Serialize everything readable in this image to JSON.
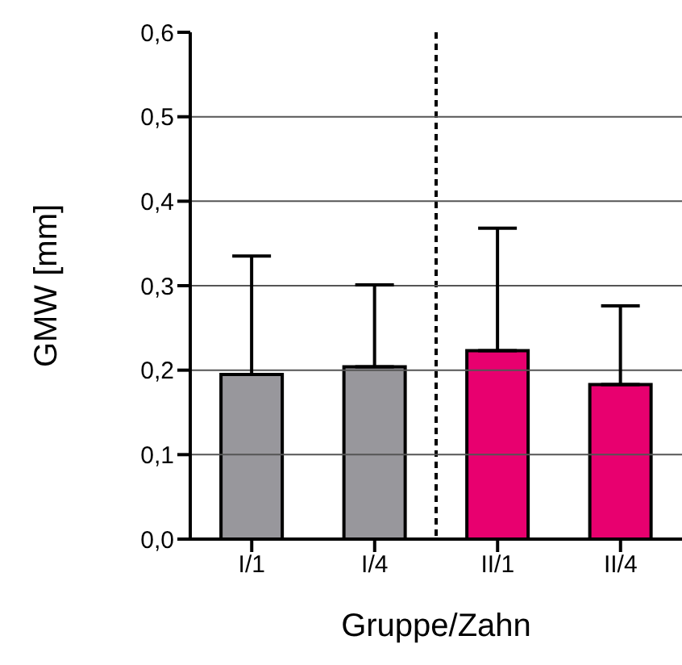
{
  "chart_data": {
    "type": "bar",
    "xlabel": "Gruppe/Zahn",
    "ylabel": "GMW [mm]",
    "categories": [
      "I/1",
      "I/4",
      "II/1",
      "II/4"
    ],
    "values": [
      0.195,
      0.204,
      0.223,
      0.183
    ],
    "colors": [
      "#98979c",
      "#98979c",
      "#e8006f",
      "#e8006f"
    ],
    "errors": [
      [
        0.195,
        0.335
      ],
      [
        0.204,
        0.301
      ],
      [
        0.223,
        0.368
      ],
      [
        0.183,
        0.276
      ]
    ],
    "ylim": [
      0,
      0.6
    ],
    "yticks": [
      {
        "value": 0,
        "label": "0,0"
      },
      {
        "value": 0.1,
        "label": "0,1"
      },
      {
        "value": 0.2,
        "label": "0,2"
      },
      {
        "value": 0.3,
        "label": "0,3"
      },
      {
        "value": 0.4,
        "label": "0,4"
      },
      {
        "value": 0.5,
        "label": "0,5"
      },
      {
        "value": 0.6,
        "label": "0,6"
      }
    ],
    "grid": "y"
  }
}
